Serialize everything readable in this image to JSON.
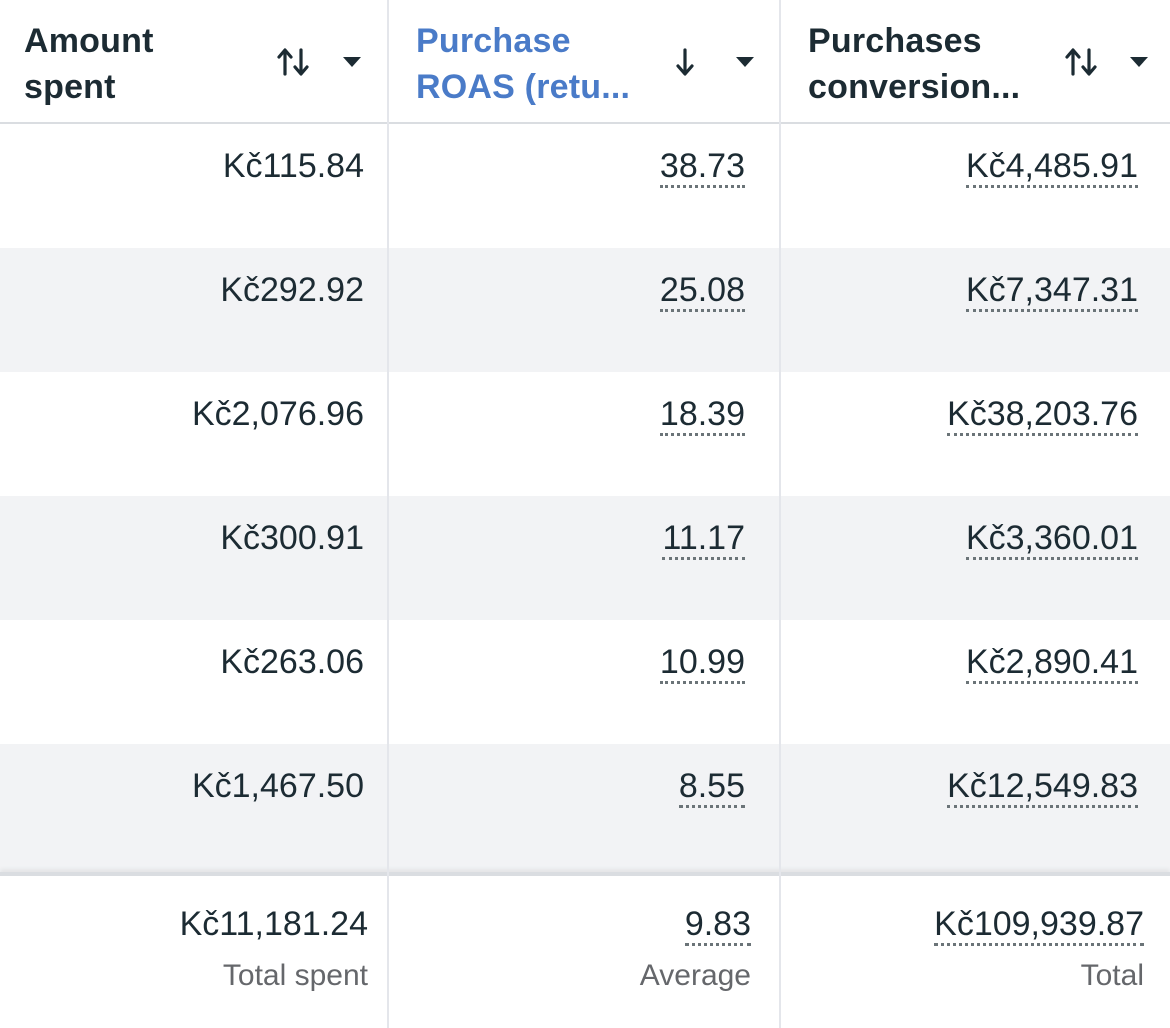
{
  "columns": [
    {
      "title": "Amount\nspent",
      "sort_state": "unsorted",
      "active": false
    },
    {
      "title": "Purchase\nROAS (retu...",
      "sort_state": "descending",
      "active": true
    },
    {
      "title": "Purchases\nconversion...",
      "sort_state": "unsorted",
      "active": false
    }
  ],
  "icons": {
    "sort_unsorted": "up-down-arrows-icon",
    "sort_descending": "down-arrow-icon",
    "menu": "caret-down-icon"
  },
  "colors": {
    "active_header": "#4a7bc8",
    "text": "#1c2b33",
    "muted": "#65676b",
    "alt_row": "#f2f3f5"
  },
  "rows": [
    {
      "amount_spent": "Kč115.84",
      "roas": "38.73",
      "conversion_value": "Kč4,485.91"
    },
    {
      "amount_spent": "Kč292.92",
      "roas": "25.08",
      "conversion_value": "Kč7,347.31"
    },
    {
      "amount_spent": "Kč2,076.96",
      "roas": "18.39",
      "conversion_value": "Kč38,203.76"
    },
    {
      "amount_spent": "Kč300.91",
      "roas": "11.17",
      "conversion_value": "Kč3,360.01"
    },
    {
      "amount_spent": "Kč263.06",
      "roas": "10.99",
      "conversion_value": "Kč2,890.41"
    },
    {
      "amount_spent": "Kč1,467.50",
      "roas": "8.55",
      "conversion_value": "Kč12,549.83"
    }
  ],
  "totals": {
    "amount_spent": {
      "value": "Kč11,181.24",
      "label": "Total spent"
    },
    "roas": {
      "value": "9.83",
      "label": "Average"
    },
    "conversion_value": {
      "value": "Kč109,939.87",
      "label": "Total"
    }
  }
}
